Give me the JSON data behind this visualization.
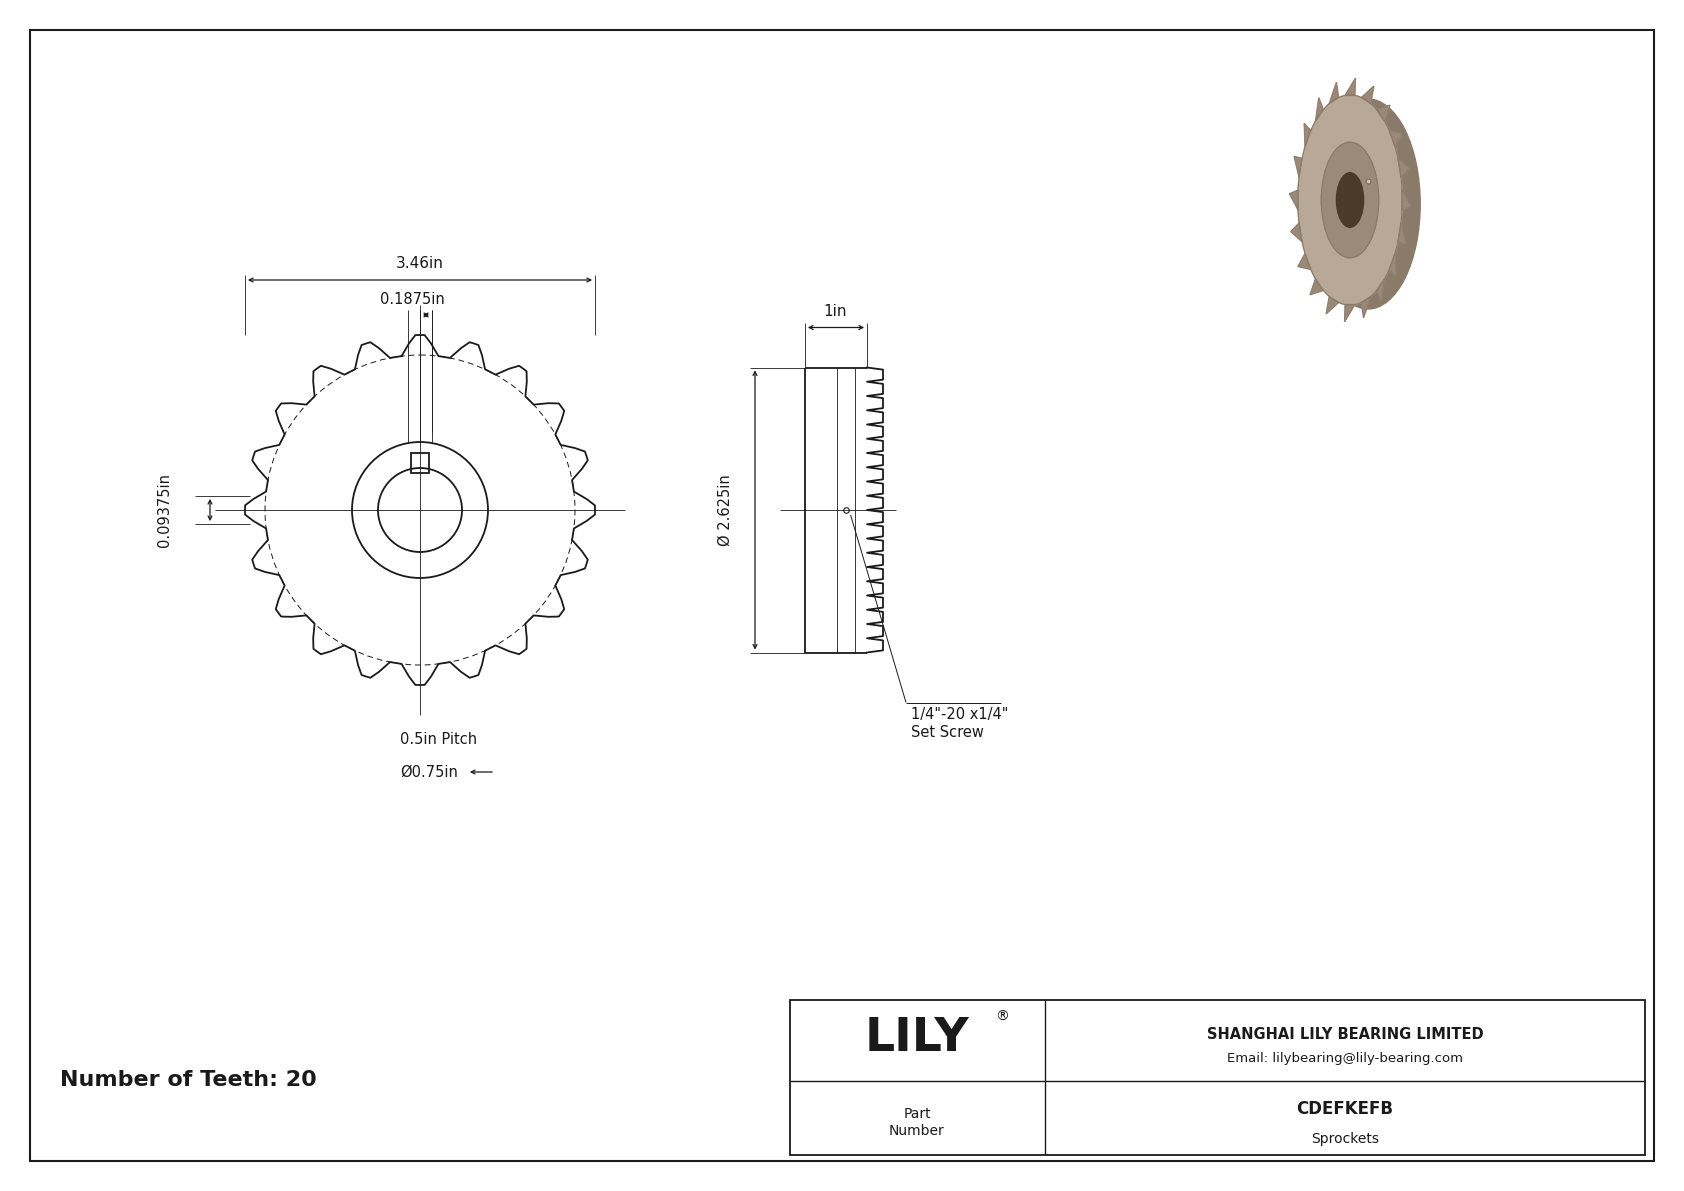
{
  "bg_color": "#ffffff",
  "line_color": "#1a1a1a",
  "title_text": "Number of Teeth: 20",
  "part_number": "CDEFKEFB",
  "category": "Sprockets",
  "company": "SHANGHAI LILY BEARING LIMITED",
  "email": "Email: lilybearing@lily-bearing.com",
  "brand": "LILY",
  "dim_346": "3.46in",
  "dim_01875": "0.1875in",
  "dim_009375": "0.09375in",
  "dim_pitch": "0.5in Pitch",
  "dim_bore": "Ø0.75in",
  "dim_1in": "1in",
  "dim_2625": "Ø 2.625in",
  "dim_setscrew": "1/4\"-20 x1/4\"\nSet Screw",
  "n_teeth": 20
}
